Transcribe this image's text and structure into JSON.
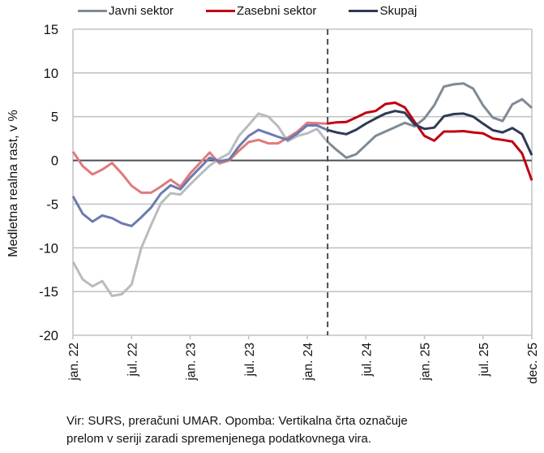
{
  "chart_data": {
    "type": "line",
    "title": "",
    "xlabel": "",
    "ylabel": "Medletna realna rast, v %",
    "ylim": [
      -20,
      15
    ],
    "yticks": [
      15,
      10,
      5,
      0,
      -5,
      -10,
      -15,
      -20
    ],
    "ytick_labels": [
      "15",
      "10",
      "5",
      "0",
      "-5",
      "-10",
      "-15",
      "-20"
    ],
    "x_months": 48,
    "x_start": "jan. 22",
    "xticks": [
      {
        "index": 0,
        "label": "jan. 22"
      },
      {
        "index": 6,
        "label": "jul. 22"
      },
      {
        "index": 12,
        "label": "jan. 23"
      },
      {
        "index": 18,
        "label": "jul. 23"
      },
      {
        "index": 24,
        "label": "jan. 24"
      },
      {
        "index": 30,
        "label": "jul. 24"
      },
      {
        "index": 36,
        "label": "jan. 25"
      },
      {
        "index": 42,
        "label": "jul. 25"
      },
      {
        "index": 47,
        "label": "dec. 25"
      }
    ],
    "grid": "horizontal",
    "legend_position": "top",
    "series_break_index": 26,
    "series": [
      {
        "name": "Javni sektor",
        "color": "#7f8a94",
        "color_before_break": "#b8bcc0",
        "values": [
          -11.6,
          -13.6,
          -14.4,
          -13.8,
          -15.5,
          -15.3,
          -14.2,
          -10.0,
          -7.4,
          -4.9,
          -3.75,
          -3.9,
          -2.75,
          -1.65,
          -0.6,
          0.2,
          0.8,
          2.8,
          4.05,
          5.35,
          5.0,
          3.9,
          2.2,
          2.8,
          3.1,
          3.6,
          2.2,
          1.2,
          0.3,
          0.7,
          1.75,
          2.8,
          3.3,
          3.8,
          4.3,
          3.9,
          4.8,
          6.3,
          8.45,
          8.7,
          8.8,
          8.2,
          6.3,
          4.9,
          4.5,
          6.4,
          7.0,
          6.0
        ]
      },
      {
        "name": "Zasebni sektor",
        "color": "#c00010",
        "color_before_break": "#e07a7a",
        "values": [
          1.0,
          -0.65,
          -1.6,
          -1.05,
          -0.3,
          -1.5,
          -2.9,
          -3.7,
          -3.7,
          -3.0,
          -2.2,
          -3.0,
          -1.5,
          -0.3,
          0.9,
          -0.35,
          0.0,
          1.1,
          2.1,
          2.35,
          1.95,
          1.95,
          2.6,
          3.3,
          4.3,
          4.25,
          4.2,
          4.35,
          4.4,
          4.9,
          5.45,
          5.65,
          6.45,
          6.6,
          6.05,
          4.4,
          2.8,
          2.25,
          3.3,
          3.3,
          3.35,
          3.2,
          3.1,
          2.5,
          2.35,
          2.15,
          0.8,
          -2.3
        ]
      },
      {
        "name": "Skupaj",
        "color": "#2e3a55",
        "color_before_break": "#6a7bb0",
        "values": [
          -4.1,
          -6.1,
          -7.0,
          -6.3,
          -6.6,
          -7.2,
          -7.5,
          -6.5,
          -5.4,
          -3.8,
          -2.85,
          -3.3,
          -2.0,
          -0.85,
          0.3,
          -0.1,
          0.1,
          1.6,
          2.8,
          3.5,
          3.1,
          2.7,
          2.35,
          3.1,
          4.0,
          4.0,
          3.5,
          3.2,
          3.0,
          3.5,
          4.2,
          4.8,
          5.35,
          5.65,
          5.45,
          4.1,
          3.6,
          3.75,
          5.05,
          5.3,
          5.35,
          5.0,
          4.2,
          3.45,
          3.2,
          3.7,
          3.0,
          0.6
        ]
      }
    ],
    "annotations": [
      "Vertical dashed line marks series break"
    ]
  },
  "legend": {
    "items": [
      {
        "label": "Javni sektor",
        "color": "#7f8a94"
      },
      {
        "label": "Zasebni sektor",
        "color": "#c00010"
      },
      {
        "label": "Skupaj",
        "color": "#2e3a55"
      }
    ]
  },
  "footer": {
    "line1": "Vir: SURS, preračuni UMAR. Opomba: Vertikalna črta označuje",
    "line2": "prelom v seriji zaradi spremenjenega podatkovnega vira."
  }
}
